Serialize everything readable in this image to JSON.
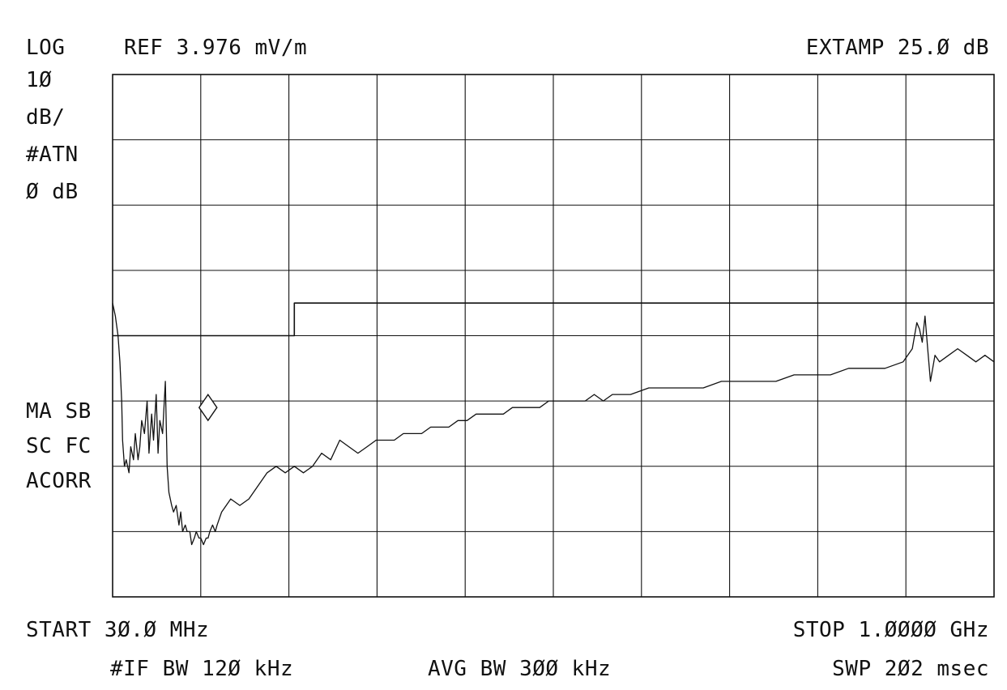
{
  "header": {
    "scale_mode": "LOG",
    "reference": "REF 3.976 mV/m",
    "ext_amp": "EXTAMP 25.Ø dB"
  },
  "left_panel": {
    "scale_value": "1Ø",
    "scale_unit": "dB/",
    "attenuation_label": "#ATN",
    "attenuation_value": "Ø dB",
    "mode_line_1": "MA SB",
    "mode_line_2": "SC FC",
    "mode_line_3": "ACORR"
  },
  "footer": {
    "start": "START 3Ø.Ø MHz",
    "stop": "STOP 1.ØØØØ GHz",
    "if_bw": "#IF BW 12Ø kHz",
    "avg_bw": "AVG BW 3ØØ kHz",
    "sweep": "SWP 2Ø2 msec"
  },
  "colors": {
    "background": "#ffffff",
    "ink": "#111111"
  },
  "chart_data": {
    "type": "line",
    "title": "",
    "xlabel": "",
    "ylabel": "",
    "x_unit": "MHz",
    "y_unit": "dB relative to reference level",
    "xlim": [
      30,
      1000
    ],
    "ylim": [
      -80,
      0
    ],
    "x_divisions": 10,
    "y_divisions": 8,
    "grid": true,
    "series": [
      {
        "x": [
          30,
          33,
          36,
          38,
          40,
          41,
          43,
          45,
          48,
          50,
          53,
          55,
          58,
          60,
          62,
          65,
          68,
          70,
          73,
          75,
          78,
          80,
          82,
          85,
          88,
          90,
          92,
          95,
          97,
          100,
          103,
          105,
          107,
          110,
          112,
          115,
          117,
          120,
          122,
          125,
          127,
          130,
          133,
          135,
          137,
          140,
          143,
          145,
          150,
          160,
          170,
          180,
          190,
          200,
          210,
          220,
          230,
          240,
          250,
          260,
          270,
          280,
          290,
          300,
          310,
          320,
          330,
          340,
          350,
          360,
          370,
          380,
          390,
          400,
          410,
          420,
          430,
          440,
          450,
          460,
          470,
          480,
          490,
          500,
          510,
          520,
          530,
          540,
          550,
          560,
          570,
          580,
          590,
          600,
          620,
          640,
          660,
          680,
          700,
          720,
          740,
          760,
          780,
          800,
          820,
          840,
          860,
          880,
          900,
          910,
          915,
          918,
          921,
          924,
          927,
          930,
          935,
          940,
          950,
          960,
          970,
          980,
          990,
          1000
        ],
        "y": [
          -35,
          -37,
          -40,
          -44,
          -50,
          -56,
          -60,
          -59,
          -61,
          -57,
          -59,
          -55,
          -59,
          -57,
          -53,
          -55,
          -50,
          -58,
          -52,
          -56,
          -49,
          -58,
          -53,
          -55,
          -47,
          -60,
          -64,
          -66,
          -67,
          -66,
          -69,
          -67,
          -70,
          -69,
          -70,
          -70,
          -72,
          -71,
          -70,
          -71,
          -71,
          -72,
          -71,
          -71,
          -70,
          -69,
          -70,
          -69,
          -67,
          -65,
          -66,
          -65,
          -63,
          -61,
          -60,
          -61,
          -60,
          -61,
          -60,
          -58,
          -59,
          -56,
          -57,
          -58,
          -57,
          -56,
          -56,
          -56,
          -55,
          -55,
          -55,
          -54,
          -54,
          -54,
          -53,
          -53,
          -52,
          -52,
          -52,
          -52,
          -51,
          -51,
          -51,
          -51,
          -50,
          -50,
          -50,
          -50,
          -50,
          -49,
          -50,
          -49,
          -49,
          -49,
          -48,
          -48,
          -48,
          -48,
          -47,
          -47,
          -47,
          -47,
          -46,
          -46,
          -46,
          -45,
          -45,
          -45,
          -44,
          -42,
          -38,
          -39,
          -41,
          -37,
          -42,
          -47,
          -43,
          -44,
          -43,
          -42,
          -43,
          -44,
          -43,
          -44
        ]
      },
      {
        "x": [
          30,
          230,
          230,
          1000
        ],
        "y": [
          -40,
          -40,
          -35,
          -35
        ]
      }
    ],
    "annotations": [
      {
        "type": "marker",
        "shape": "diamond",
        "x": 135,
        "y": -51
      }
    ]
  }
}
